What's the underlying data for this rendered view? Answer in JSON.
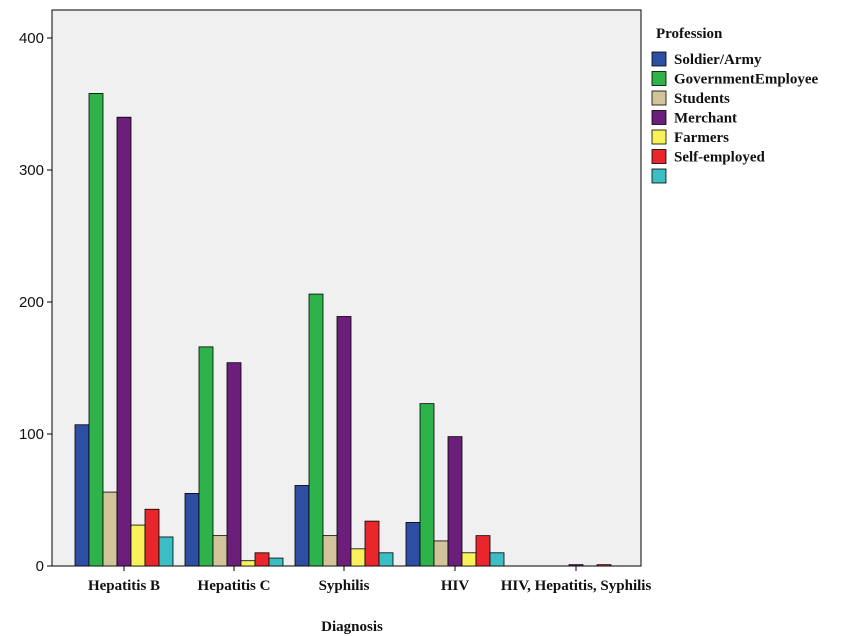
{
  "chart_data": {
    "type": "bar",
    "xlabel": "Diagnosis",
    "ylabel": "",
    "ylim": [
      0,
      400
    ],
    "yticks": [
      0,
      100,
      200,
      300,
      400
    ],
    "grid": false,
    "legend_title": "Profession",
    "legend_position": "right",
    "categories": [
      "Hepatitis B",
      "Hepatitis C",
      "Syphilis",
      "HIV",
      "HIV, Hepatitis, Syphilis"
    ],
    "series": [
      {
        "name": "Soldier/Army",
        "color": "#2e4ea3",
        "values": [
          107,
          55,
          61,
          33,
          0
        ]
      },
      {
        "name": "GovernmentEmployee",
        "color": "#2db34a",
        "values": [
          358,
          166,
          206,
          123,
          0
        ]
      },
      {
        "name": "Students",
        "color": "#d3c39b",
        "values": [
          56,
          23,
          23,
          19,
          0
        ]
      },
      {
        "name": "Merchant",
        "color": "#6b1f7b",
        "values": [
          340,
          154,
          189,
          98,
          1
        ]
      },
      {
        "name": "Farmers",
        "color": "#f8f25a",
        "values": [
          31,
          4,
          13,
          10,
          0
        ]
      },
      {
        "name": "Self-employed",
        "color": "#e8262c",
        "values": [
          43,
          10,
          34,
          23,
          1
        ]
      },
      {
        "color": "#3cbfc4",
        "values": [
          22,
          6,
          10,
          10,
          0
        ]
      }
    ]
  },
  "colors": {
    "plot_background": "#f0f0f0",
    "axis": "#000000"
  }
}
